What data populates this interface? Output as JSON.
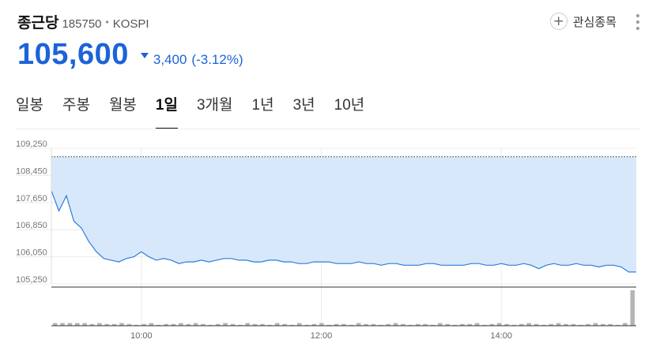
{
  "stock": {
    "name": "종근당",
    "code": "185750",
    "market": "KOSPI",
    "price": "105,600",
    "change": "3,400",
    "change_rate": "(-3.12%)",
    "direction": "down",
    "color_down": "#1b63d9"
  },
  "header": {
    "watchlist_label": "관심종목"
  },
  "tabs": [
    {
      "label": "일봉",
      "active": false
    },
    {
      "label": "주봉",
      "active": false
    },
    {
      "label": "월봉",
      "active": false
    },
    {
      "label": "1일",
      "active": true
    },
    {
      "label": "3개월",
      "active": false
    },
    {
      "label": "1년",
      "active": false
    },
    {
      "label": "3년",
      "active": false
    },
    {
      "label": "10년",
      "active": false
    }
  ],
  "chart_data": {
    "type": "area",
    "ylim": [
      105250,
      109250
    ],
    "y_ticks": [
      "109,250",
      "108,450",
      "107,650",
      "106,850",
      "106,050",
      "105,250"
    ],
    "y_tick_values": [
      109250,
      108450,
      107650,
      106850,
      106050,
      105250
    ],
    "x_ticks": [
      "10:00",
      "12:00",
      "14:00"
    ],
    "x_tick_values": [
      "10:00",
      "12:00",
      "14:00"
    ],
    "x_range": [
      "09:00",
      "15:30"
    ],
    "previous_close": 109000,
    "grid": true,
    "line_color": "#2f7ddb",
    "fill_color": "#d8e8fb",
    "series": [
      {
        "x": [
          "09:00",
          "09:05",
          "09:10",
          "09:15",
          "09:20",
          "09:25",
          "09:30",
          "09:35",
          "09:40",
          "09:45",
          "09:50",
          "09:55",
          "10:00",
          "10:05",
          "10:10",
          "10:15",
          "10:20",
          "10:25",
          "10:30",
          "10:35",
          "10:40",
          "10:45",
          "10:50",
          "10:55",
          "11:00",
          "11:05",
          "11:10",
          "11:15",
          "11:20",
          "11:25",
          "11:30",
          "11:35",
          "11:40",
          "11:45",
          "11:50",
          "11:55",
          "12:00",
          "12:05",
          "12:10",
          "12:15",
          "12:20",
          "12:25",
          "12:30",
          "12:35",
          "12:40",
          "12:45",
          "12:50",
          "12:55",
          "13:00",
          "13:05",
          "13:10",
          "13:15",
          "13:20",
          "13:25",
          "13:30",
          "13:35",
          "13:40",
          "13:45",
          "13:50",
          "13:55",
          "14:00",
          "14:05",
          "14:10",
          "14:15",
          "14:20",
          "14:25",
          "14:30",
          "14:35",
          "14:40",
          "14:45",
          "14:50",
          "14:55",
          "15:00",
          "15:05",
          "15:10",
          "15:15",
          "15:20",
          "15:25",
          "15:30"
        ],
        "values": [
          108000,
          107400,
          107850,
          107100,
          106900,
          106500,
          106200,
          106000,
          105950,
          105900,
          106000,
          106050,
          106200,
          106050,
          105950,
          106000,
          105950,
          105850,
          105900,
          105900,
          105950,
          105900,
          105950,
          106000,
          106000,
          105950,
          105950,
          105900,
          105900,
          105950,
          105950,
          105900,
          105900,
          105850,
          105850,
          105900,
          105900,
          105900,
          105850,
          105850,
          105850,
          105900,
          105850,
          105850,
          105800,
          105850,
          105850,
          105800,
          105800,
          105800,
          105850,
          105850,
          105800,
          105800,
          105800,
          105800,
          105850,
          105850,
          105800,
          105800,
          105850,
          105800,
          105800,
          105850,
          105800,
          105700,
          105800,
          105850,
          105800,
          105800,
          105850,
          105800,
          105800,
          105750,
          105800,
          105800,
          105750,
          105600,
          105600
        ]
      }
    ],
    "volume": [
      3,
      3,
      3,
      3,
      3,
      2,
      3,
      2,
      2,
      3,
      2,
      1,
      2,
      3,
      1,
      2,
      2,
      3,
      2,
      3,
      2,
      1,
      2,
      3,
      2,
      1,
      3,
      2,
      2,
      1,
      3,
      2,
      1,
      3,
      1,
      2,
      3,
      1,
      2,
      2,
      1,
      3,
      2,
      2,
      1,
      2,
      3,
      2,
      1,
      2,
      2,
      1,
      3,
      2,
      1,
      2,
      2,
      3,
      1,
      2,
      3,
      2,
      1,
      2,
      3,
      2,
      1,
      2,
      3,
      2,
      2,
      1,
      2,
      3,
      2,
      2,
      1,
      3,
      40
    ]
  }
}
